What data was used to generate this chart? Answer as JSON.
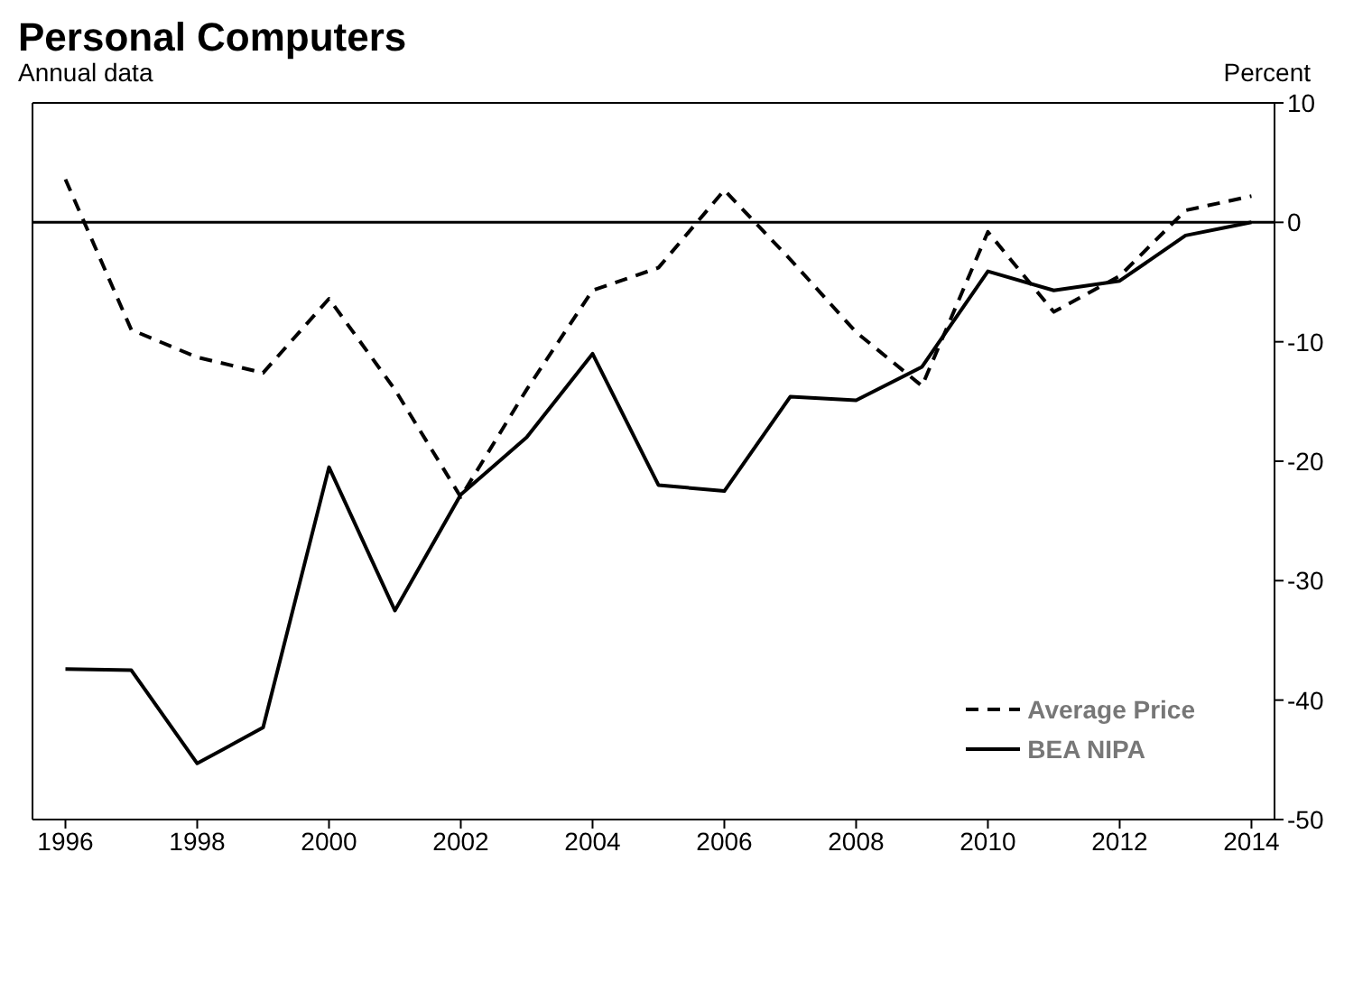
{
  "chart_data": {
    "type": "line",
    "title": "Personal Computers",
    "subtitle": "Annual data",
    "ylabel": "Percent",
    "x": [
      1996,
      1997,
      1998,
      1999,
      2000,
      2001,
      2002,
      2003,
      2004,
      2005,
      2006,
      2007,
      2008,
      2009,
      2010,
      2011,
      2012,
      2013,
      2014
    ],
    "series": [
      {
        "name": "Average Price",
        "color": "#000000",
        "line_style": "dashed",
        "values": [
          3.6,
          -9,
          -11.3,
          -12.6,
          -6.4,
          -14,
          -23,
          -14,
          -5.7,
          -3.8,
          2.7,
          -3.1,
          -9.2,
          -13.7,
          -0.8,
          -7.5,
          -4.5,
          1,
          2.2
        ]
      },
      {
        "name": "BEA NIPA",
        "color": "#000000",
        "line_style": "solid",
        "values": [
          -37.4,
          -37.5,
          -45.3,
          -42.3,
          -20.5,
          -32.5,
          -22.8,
          -18,
          -11,
          -22,
          -22.5,
          -14.6,
          -14.9,
          -12.1,
          -4.1,
          -5.7,
          -4.9,
          -1.1,
          0
        ]
      }
    ],
    "xlim": [
      1995.5,
      2014.35
    ],
    "xticks": [
      1996,
      1998,
      2000,
      2002,
      2004,
      2006,
      2008,
      2010,
      2012,
      2014
    ],
    "ylim": [
      -50,
      10
    ],
    "yticks": [
      -50,
      -40,
      -30,
      -20,
      -10,
      0,
      10
    ],
    "ref_lines": [
      {
        "axis": "y",
        "value": 0,
        "color": "#000000"
      }
    ],
    "legend": "bottom right",
    "marker": "none"
  }
}
